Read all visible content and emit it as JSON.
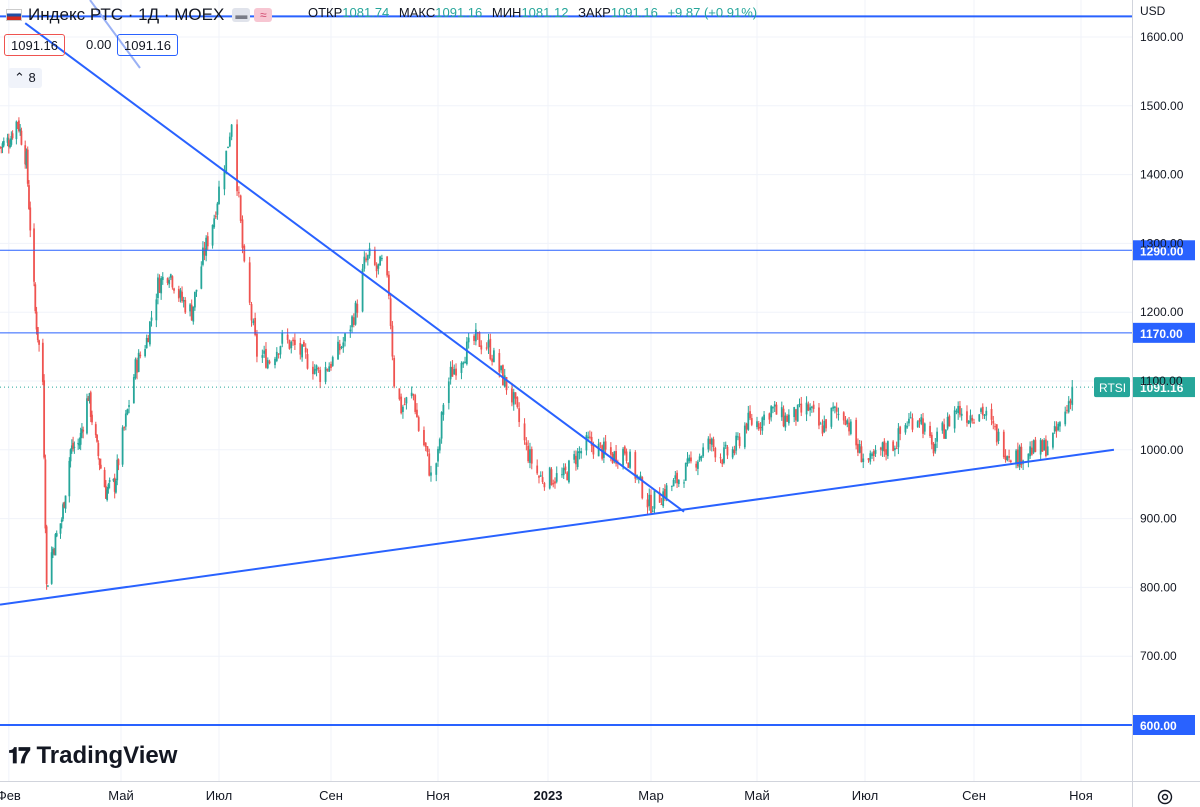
{
  "header": {
    "symbol": "Индекс РТС · 1Д · MOEX",
    "open_label": "ОТКР",
    "open": "1081.74",
    "high_label": "МАКС",
    "high": "1091.16",
    "low_label": "МИН",
    "low": "1081.12",
    "close_label": "ЗАКР",
    "close": "1091.16",
    "change": "+9.87 (+0.91%)"
  },
  "price_boxes": {
    "bid": "1091.16",
    "spread": "0.00",
    "ask": "1091.16"
  },
  "collapse_count": "8",
  "currency": "USD",
  "logo_text": "TradingView",
  "colors": {
    "up": "#26a69a",
    "down": "#ef5350",
    "drawing": "#2962ff",
    "grid": "#f0f3fa"
  },
  "chart_data": {
    "type": "candlestick",
    "instrument": "RTSI",
    "y_axis": {
      "ticks": [
        "600.00",
        "700.00",
        "800.00",
        "900.00",
        "1000.00",
        "1100.00",
        "1200.00",
        "1300.00",
        "1400.00",
        "1500.00",
        "1600.00"
      ],
      "ylim": [
        585,
        1635
      ]
    },
    "x_axis": {
      "ticks": [
        "Фев",
        "Май",
        "Июл",
        "Сен",
        "Ноя",
        "2023",
        "Мар",
        "Май",
        "Июл",
        "Сен",
        "Ноя"
      ]
    },
    "last_price": {
      "label": "RTSI",
      "value": "1091.16",
      "y": 1091.16
    },
    "horizontal_lines": [
      {
        "value": 1290,
        "label": "1290.00"
      },
      {
        "value": 1170,
        "label": "1170.00"
      },
      {
        "value": 600,
        "label": "600.00"
      },
      {
        "value": 1630,
        "label": ""
      }
    ],
    "trend_lines": [
      {
        "name": "descending",
        "points": [
          [
            "2022-02-14",
            1620
          ],
          [
            "2023-03-20",
            910
          ]
        ]
      },
      {
        "name": "ascending",
        "points": [
          [
            "2022-01-25",
            775
          ],
          [
            "2023-11-20",
            1000
          ]
        ]
      }
    ],
    "close_series": [
      [
        "2022-01-25",
        1440
      ],
      [
        "2022-02-01",
        1450
      ],
      [
        "2022-02-08",
        1480
      ],
      [
        "2022-02-15",
        1420
      ],
      [
        "2022-02-22",
        1200
      ],
      [
        "2022-02-28",
        1100
      ],
      [
        "2022-03-02",
        900
      ],
      [
        "2022-03-03",
        800
      ],
      [
        "2022-03-07",
        850
      ],
      [
        "2022-03-15",
        900
      ],
      [
        "2022-03-22",
        1000
      ],
      [
        "2022-03-29",
        1010
      ],
      [
        "2022-04-05",
        1080
      ],
      [
        "2022-04-12",
        1000
      ],
      [
        "2022-04-19",
        940
      ],
      [
        "2022-04-26",
        950
      ],
      [
        "2022-05-03",
        1030
      ],
      [
        "2022-05-10",
        1120
      ],
      [
        "2022-05-17",
        1160
      ],
      [
        "2022-05-24",
        1240
      ],
      [
        "2022-05-31",
        1260
      ],
      [
        "2022-06-07",
        1220
      ],
      [
        "2022-06-14",
        1200
      ],
      [
        "2022-06-21",
        1280
      ],
      [
        "2022-06-28",
        1340
      ],
      [
        "2022-07-05",
        1430
      ],
      [
        "2022-07-08",
        1480
      ],
      [
        "2022-07-12",
        1360
      ],
      [
        "2022-07-15",
        1260
      ],
      [
        "2022-07-22",
        1140
      ],
      [
        "2022-07-29",
        1130
      ],
      [
        "2022-08-05",
        1160
      ],
      [
        "2022-08-12",
        1150
      ],
      [
        "2022-08-19",
        1130
      ],
      [
        "2022-08-26",
        1110
      ],
      [
        "2022-09-02",
        1130
      ],
      [
        "2022-09-09",
        1160
      ],
      [
        "2022-09-16",
        1210
      ],
      [
        "2022-09-20",
        1270
      ],
      [
        "2022-09-23",
        1280
      ],
      [
        "2022-09-27",
        1260
      ],
      [
        "2022-09-30",
        1270
      ],
      [
        "2022-10-04",
        1230
      ],
      [
        "2022-10-07",
        1100
      ],
      [
        "2022-10-11",
        1060
      ],
      [
        "2022-10-14",
        1070
      ],
      [
        "2022-10-18",
        1080
      ],
      [
        "2022-10-21",
        1030
      ],
      [
        "2022-10-25",
        1000
      ],
      [
        "2022-10-28",
        960
      ],
      [
        "2022-11-01",
        990
      ],
      [
        "2022-11-04",
        1070
      ],
      [
        "2022-11-08",
        1110
      ],
      [
        "2022-11-15",
        1140
      ],
      [
        "2022-11-22",
        1160
      ],
      [
        "2022-11-29",
        1150
      ],
      [
        "2022-12-06",
        1110
      ],
      [
        "2022-12-13",
        1070
      ],
      [
        "2022-12-20",
        1000
      ],
      [
        "2022-12-27",
        960
      ],
      [
        "2023-01-03",
        960
      ],
      [
        "2023-01-10",
        960
      ],
      [
        "2023-01-17",
        990
      ],
      [
        "2023-01-24",
        1010
      ],
      [
        "2023-01-31",
        1000
      ],
      [
        "2023-02-07",
        990
      ],
      [
        "2023-02-14",
        1000
      ],
      [
        "2023-02-21",
        960
      ],
      [
        "2023-02-28",
        920
      ],
      [
        "2023-03-07",
        935
      ],
      [
        "2023-03-14",
        950
      ],
      [
        "2023-03-21",
        970
      ],
      [
        "2023-03-28",
        990
      ],
      [
        "2023-04-04",
        1010
      ],
      [
        "2023-04-11",
        990
      ],
      [
        "2023-04-18",
        1000
      ],
      [
        "2023-04-25",
        1040
      ],
      [
        "2023-05-02",
        1040
      ],
      [
        "2023-05-09",
        1060
      ],
      [
        "2023-05-16",
        1045
      ],
      [
        "2023-05-23",
        1050
      ],
      [
        "2023-05-30",
        1060
      ],
      [
        "2023-06-06",
        1030
      ],
      [
        "2023-06-13",
        1055
      ],
      [
        "2023-06-20",
        1050
      ],
      [
        "2023-06-27",
        1000
      ],
      [
        "2023-07-04",
        980
      ],
      [
        "2023-07-11",
        1000
      ],
      [
        "2023-07-18",
        1010
      ],
      [
        "2023-07-25",
        1040
      ],
      [
        "2023-08-01",
        1050
      ],
      [
        "2023-08-08",
        1000
      ],
      [
        "2023-08-15",
        1030
      ],
      [
        "2023-08-22",
        1060
      ],
      [
        "2023-08-29",
        1050
      ],
      [
        "2023-09-05",
        1060
      ],
      [
        "2023-09-12",
        1030
      ],
      [
        "2023-09-19",
        1000
      ],
      [
        "2023-09-26",
        990
      ],
      [
        "2023-10-03",
        1000
      ],
      [
        "2023-10-10",
        1000
      ],
      [
        "2023-10-17",
        1020
      ],
      [
        "2023-10-24",
        1060
      ],
      [
        "2023-10-27",
        1091
      ]
    ]
  }
}
